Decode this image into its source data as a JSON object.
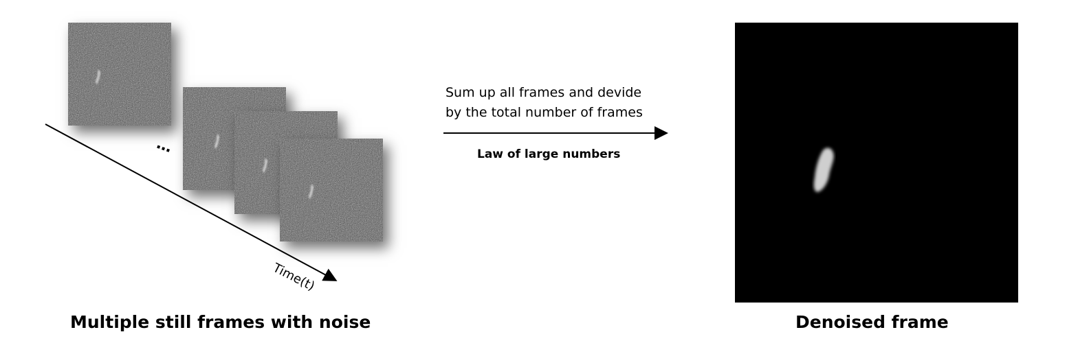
{
  "left_caption": "Multiple still frames with noise",
  "right_caption": "Denoised frame",
  "arrow_label_line1": "Sum up all frames and devide",
  "arrow_label_line2": "by the total number of frames",
  "arrow_sublabel": "Law of large numbers",
  "ellipsis": "…",
  "time_axis_label": "Time(t)",
  "colors": {
    "noise_base": "#555555",
    "background_dark": "#000000",
    "blob": "#cfcfcf"
  }
}
